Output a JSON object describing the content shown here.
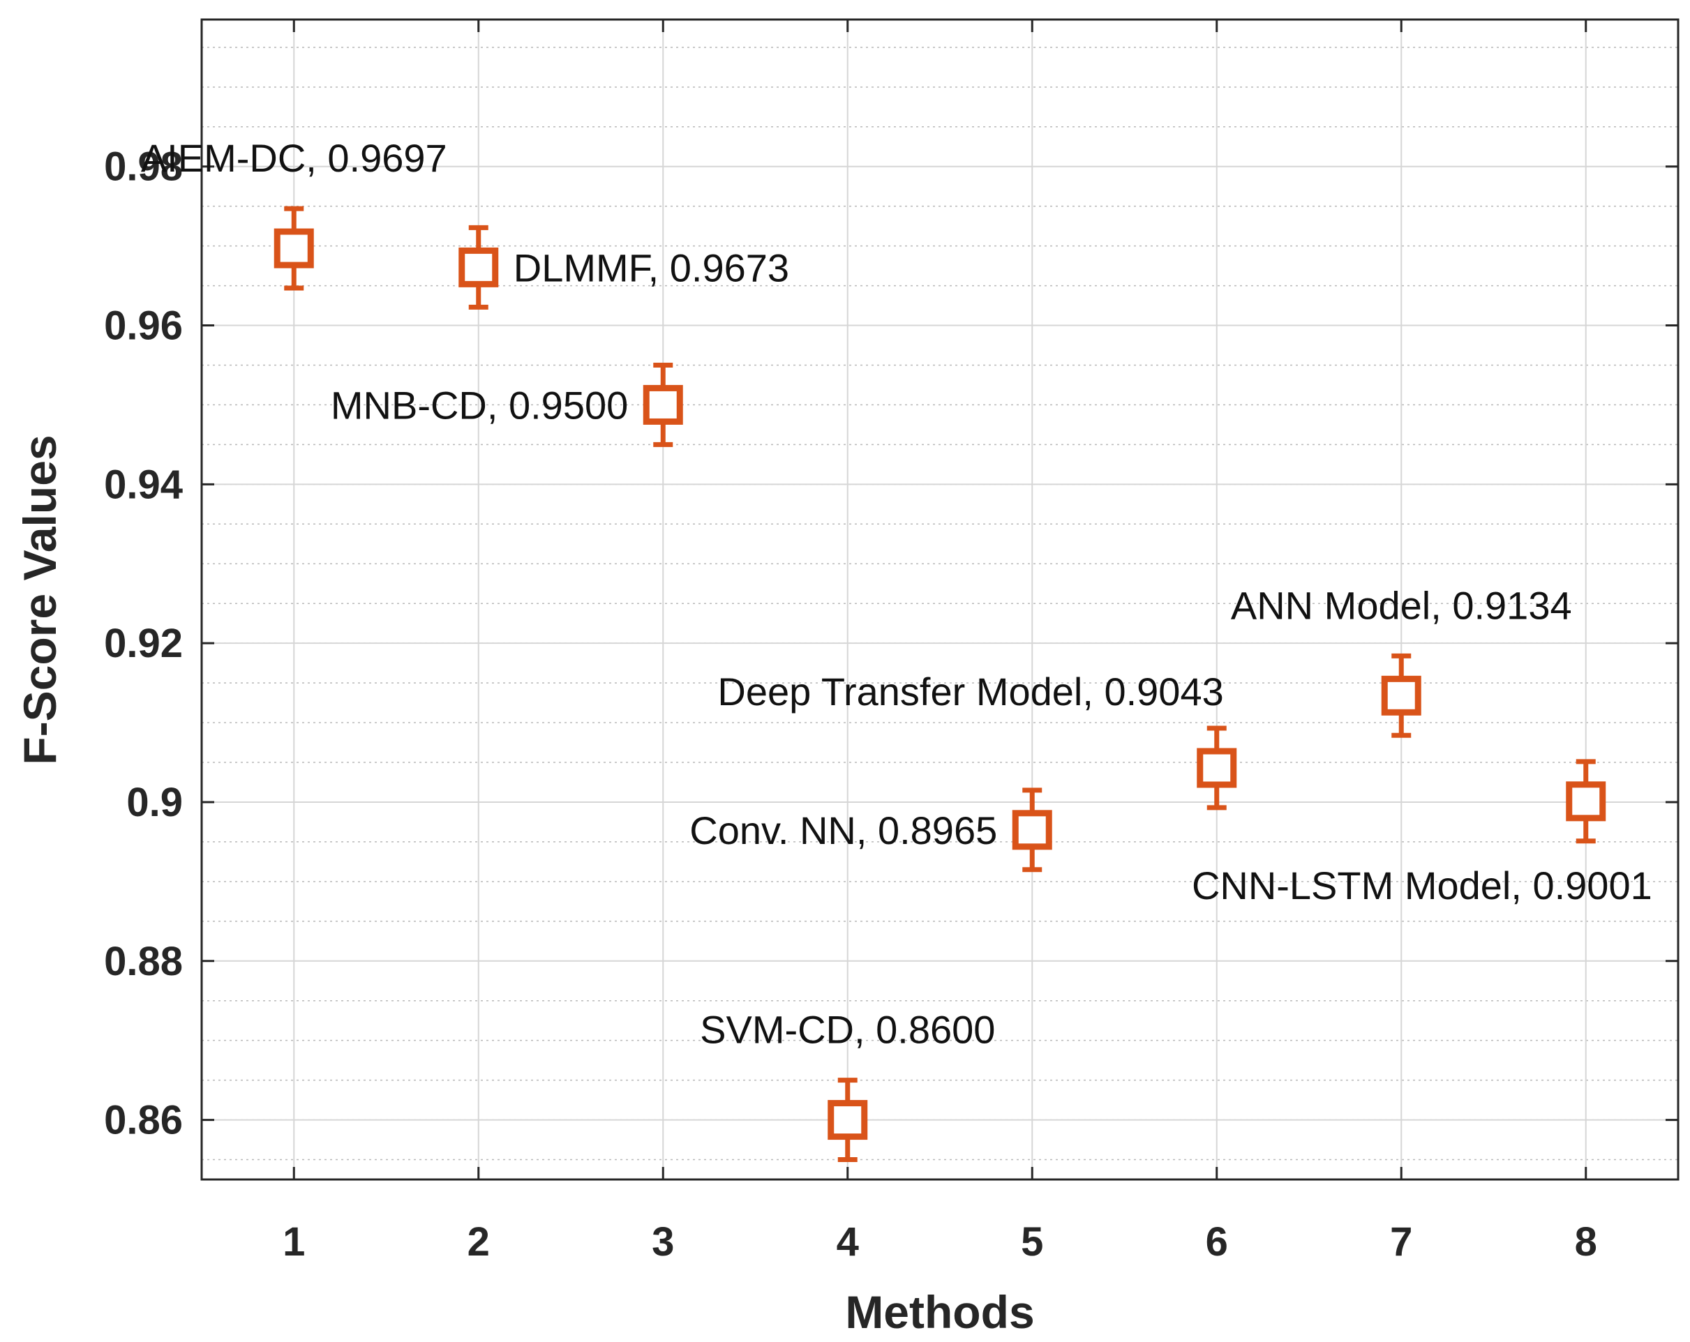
{
  "chart_data": {
    "type": "scatter",
    "title": "",
    "xlabel": "Methods",
    "ylabel": "F-Score Values",
    "xlim": [
      0.5,
      8.5
    ],
    "ylim": [
      0.8525,
      0.9985
    ],
    "xticks": [
      "1",
      "2",
      "3",
      "4",
      "5",
      "6",
      "7",
      "8"
    ],
    "yticks": [
      "0.86",
      "0.88",
      "0.9",
      "0.92",
      "0.94",
      "0.96",
      "0.98"
    ],
    "ytick_values": [
      0.86,
      0.88,
      0.9,
      0.92,
      0.94,
      0.96,
      0.98
    ],
    "grid": true,
    "minor_grid": true,
    "marker": "square",
    "error_bar": 0.005,
    "color": "#d95319",
    "points": [
      {
        "x": 1,
        "y": 0.9697,
        "label": "AIEM-DC, 0.9697",
        "label_pos": "above"
      },
      {
        "x": 2,
        "y": 0.9673,
        "label": "DLMMF, 0.9673",
        "label_pos": "right"
      },
      {
        "x": 3,
        "y": 0.95,
        "label": "MNB-CD, 0.9500",
        "label_pos": "left"
      },
      {
        "x": 4,
        "y": 0.86,
        "label": "SVM-CD, 0.8600",
        "label_pos": "above"
      },
      {
        "x": 5,
        "y": 0.8965,
        "label": "Conv. NN, 0.8965",
        "label_pos": "left"
      },
      {
        "x": 6,
        "y": 0.9043,
        "label": "Deep Transfer Model, 0.9043",
        "label_pos": "above-left"
      },
      {
        "x": 7,
        "y": 0.9134,
        "label": "ANN Model, 0.9134",
        "label_pos": "above"
      },
      {
        "x": 8,
        "y": 0.9001,
        "label": "CNN-LSTM Model, 0.9001",
        "label_pos": "below-left"
      }
    ]
  }
}
